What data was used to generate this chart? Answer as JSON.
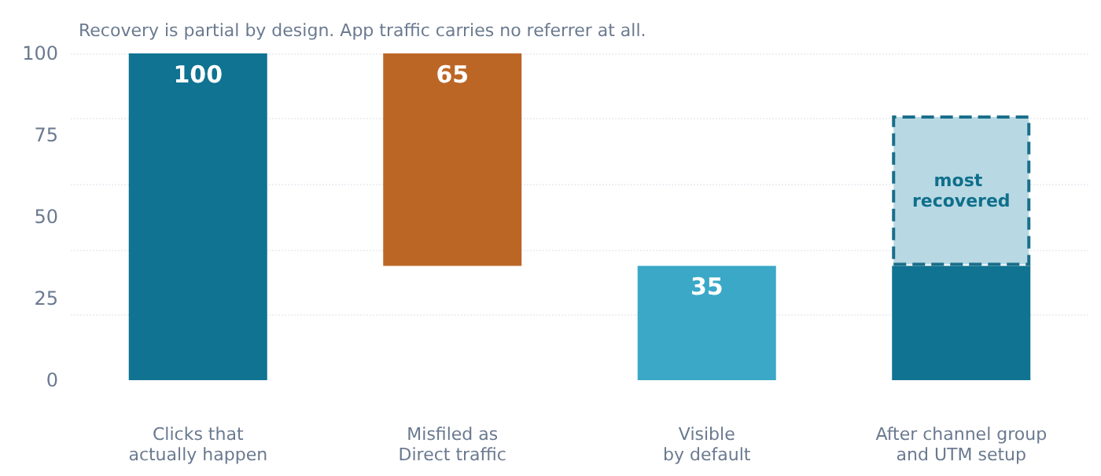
{
  "chart_data": {
    "type": "bar",
    "title": "Recovery is partial by design. App traffic carries no referrer at all.",
    "categories": [
      "Clicks that\nactually happen",
      "Misfiled as\nDirect traffic",
      "Visible\nby default",
      "After channel group\nand UTM setup"
    ],
    "series": [
      {
        "values": [
          100,
          65,
          35,
          35
        ],
        "base": [
          0,
          35,
          0,
          0
        ],
        "colors": [
          "#0f7391",
          "#bc6626",
          "#3aa8c6",
          "#0f7391"
        ],
        "value_labels": [
          "100",
          "65",
          "35",
          null
        ]
      },
      {
        "values": [
          null,
          null,
          null,
          46
        ],
        "base": [
          null,
          null,
          null,
          35
        ],
        "color": "#b8d9e3",
        "line_style": "dashed"
      }
    ],
    "ylim": [
      0,
      100
    ],
    "yticks": [
      0,
      25,
      50,
      75,
      100
    ],
    "grid": "y",
    "annotations": [
      "most recovered"
    ]
  }
}
